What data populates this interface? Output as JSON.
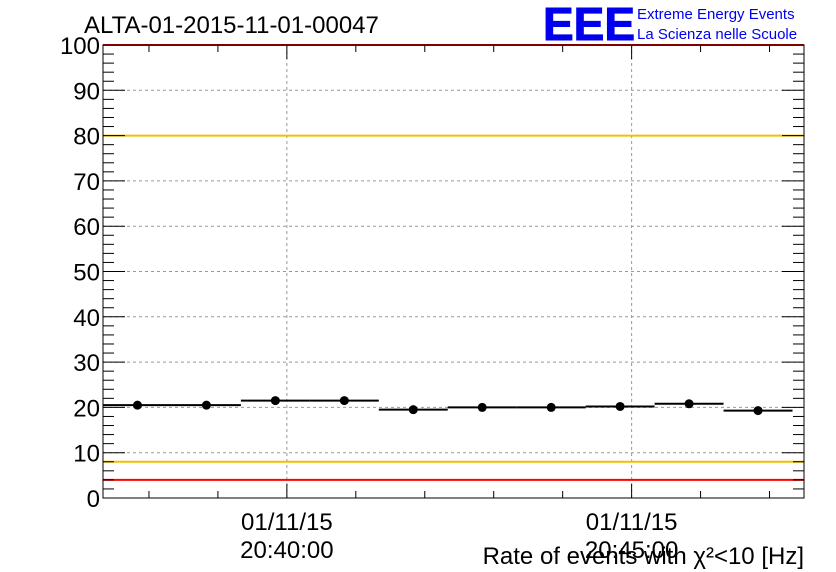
{
  "logo": {
    "mark": "EEE",
    "line1": "Extreme Energy Events",
    "line2": "La Scienza nelle Scuole",
    "color": "#0000ee"
  },
  "chart_data": {
    "type": "scatter",
    "title": "ALTA-01-2015-11-01-00047",
    "xlabel": "Rate of events with χ²<10 [Hz]",
    "ylabel": "",
    "ylim": [
      0,
      100
    ],
    "yticks": [
      0,
      10,
      20,
      30,
      40,
      50,
      60,
      70,
      80,
      90,
      100
    ],
    "xticks": [
      {
        "date": "01/11/15",
        "time": "20:40:00"
      },
      {
        "date": "01/11/15",
        "time": "20:45:00"
      }
    ],
    "xlim": [
      "2015-11-01 20:37:20",
      "2015-11-01 20:47:30"
    ],
    "grid": true,
    "series": [
      {
        "x": [
          "20:37:50",
          "20:38:50",
          "20:39:50",
          "20:40:50",
          "20:41:50",
          "20:42:50",
          "20:43:50",
          "20:44:50",
          "20:45:50",
          "20:46:50"
        ],
        "values": [
          20.5,
          20.5,
          21.5,
          21.5,
          19.5,
          20.0,
          20.0,
          20.2,
          20.8,
          19.3
        ],
        "bin_width_s": 60,
        "color": "#000000"
      }
    ],
    "reference_lines": [
      {
        "y": 80,
        "color": "#f0c000"
      },
      {
        "y": 8,
        "color": "#f0c000"
      },
      {
        "y": 100,
        "color": "#ff0000"
      },
      {
        "y": 4,
        "color": "#ff0000"
      }
    ]
  }
}
